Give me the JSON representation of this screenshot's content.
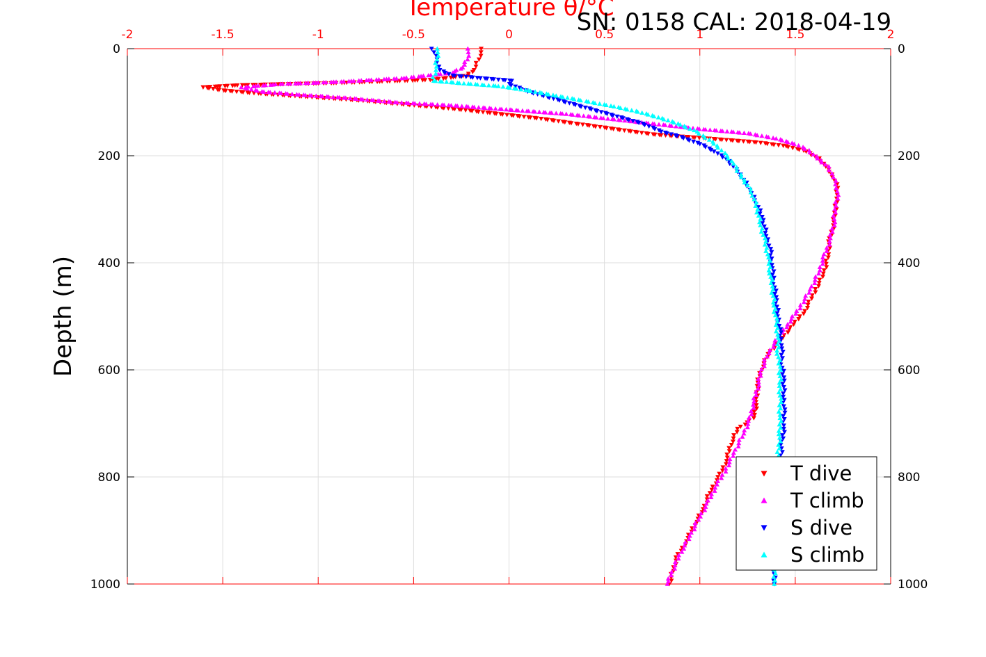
{
  "header": {
    "temperature_title": "Temperature θ/°C",
    "calibration": "SN: 0158  CAL: 2018-04-19"
  },
  "chart_data": {
    "type": "scatter",
    "title": "Temperature θ/°C",
    "ylabel": "Depth (m)",
    "xlabel": "",
    "xlim": [
      -2,
      2
    ],
    "ylim": [
      0,
      1000
    ],
    "y_inverted": true,
    "x_axis_position": "top",
    "x_ticks": [
      "-2",
      "-1.5",
      "-1",
      "-0.5",
      "0",
      "0.5",
      "1",
      "1.5",
      "2"
    ],
    "y_ticks": [
      "0",
      "200",
      "400",
      "600",
      "800",
      "1000"
    ],
    "grid": true,
    "legend_position": "bottom-right",
    "colors": {
      "axis": "#ff0000",
      "grid": "#dddddd",
      "text": "#000000"
    },
    "series": [
      {
        "name": "T dive",
        "color": "#ff0000",
        "marker": "triangle-down",
        "points": [
          [
            -0.14,
            0
          ],
          [
            -0.16,
            20
          ],
          [
            -0.18,
            40
          ],
          [
            -0.22,
            50
          ],
          [
            -0.4,
            58
          ],
          [
            -0.9,
            64
          ],
          [
            -1.4,
            68
          ],
          [
            -1.6,
            72
          ],
          [
            -1.5,
            78
          ],
          [
            -1.3,
            84
          ],
          [
            -1.05,
            90
          ],
          [
            -0.8,
            96
          ],
          [
            -0.55,
            104
          ],
          [
            -0.3,
            112
          ],
          [
            -0.1,
            120
          ],
          [
            0.15,
            130
          ],
          [
            0.35,
            140
          ],
          [
            0.55,
            150
          ],
          [
            0.75,
            160
          ],
          [
            1.05,
            168
          ],
          [
            1.3,
            175
          ],
          [
            1.45,
            182
          ],
          [
            1.56,
            192
          ],
          [
            1.62,
            205
          ],
          [
            1.66,
            220
          ],
          [
            1.7,
            240
          ],
          [
            1.72,
            260
          ],
          [
            1.72,
            280
          ],
          [
            1.71,
            300
          ],
          [
            1.7,
            330
          ],
          [
            1.68,
            360
          ],
          [
            1.67,
            390
          ],
          [
            1.65,
            420
          ],
          [
            1.6,
            455
          ],
          [
            1.55,
            490
          ],
          [
            1.48,
            520
          ],
          [
            1.42,
            545
          ],
          [
            1.36,
            570
          ],
          [
            1.32,
            600
          ],
          [
            1.3,
            630
          ],
          [
            1.3,
            660
          ],
          [
            1.28,
            690
          ],
          [
            1.2,
            710
          ],
          [
            1.16,
            740
          ],
          [
            1.14,
            770
          ],
          [
            1.1,
            800
          ],
          [
            1.05,
            830
          ],
          [
            1.02,
            860
          ],
          [
            0.97,
            890
          ],
          [
            0.93,
            920
          ],
          [
            0.88,
            950
          ],
          [
            0.86,
            975
          ],
          [
            0.84,
            1000
          ]
        ]
      },
      {
        "name": "T climb",
        "color": "#ff00ff",
        "marker": "triangle-up",
        "points": [
          [
            -0.21,
            0
          ],
          [
            -0.22,
            20
          ],
          [
            -0.24,
            35
          ],
          [
            -0.3,
            45
          ],
          [
            -0.55,
            55
          ],
          [
            -0.9,
            62
          ],
          [
            -1.2,
            66
          ],
          [
            -1.4,
            72
          ],
          [
            -1.3,
            80
          ],
          [
            -1.1,
            86
          ],
          [
            -0.85,
            92
          ],
          [
            -0.6,
            100
          ],
          [
            -0.3,
            106
          ],
          [
            0.0,
            114
          ],
          [
            0.3,
            122
          ],
          [
            0.5,
            130
          ],
          [
            0.75,
            140
          ],
          [
            1.0,
            150
          ],
          [
            1.25,
            158
          ],
          [
            1.4,
            168
          ],
          [
            1.5,
            178
          ],
          [
            1.57,
            190
          ],
          [
            1.62,
            205
          ],
          [
            1.67,
            220
          ],
          [
            1.7,
            240
          ],
          [
            1.72,
            260
          ],
          [
            1.72,
            280
          ],
          [
            1.71,
            300
          ],
          [
            1.7,
            330
          ],
          [
            1.68,
            360
          ],
          [
            1.65,
            390
          ],
          [
            1.62,
            420
          ],
          [
            1.58,
            450
          ],
          [
            1.52,
            485
          ],
          [
            1.46,
            515
          ],
          [
            1.4,
            545
          ],
          [
            1.35,
            575
          ],
          [
            1.32,
            605
          ],
          [
            1.3,
            635
          ],
          [
            1.28,
            665
          ],
          [
            1.26,
            695
          ],
          [
            1.22,
            725
          ],
          [
            1.18,
            755
          ],
          [
            1.13,
            790
          ],
          [
            1.08,
            820
          ],
          [
            1.04,
            850
          ],
          [
            0.99,
            880
          ],
          [
            0.95,
            910
          ],
          [
            0.9,
            940
          ],
          [
            0.87,
            965
          ],
          [
            0.84,
            990
          ],
          [
            0.83,
            1000
          ]
        ]
      },
      {
        "name": "S dive",
        "color": "#0000ff",
        "marker": "triangle-down",
        "points": [
          [
            -0.4,
            0
          ],
          [
            -0.38,
            20
          ],
          [
            -0.36,
            40
          ],
          [
            -0.3,
            50
          ],
          [
            -0.15,
            55
          ],
          [
            0.02,
            60
          ],
          [
            0.0,
            66
          ],
          [
            0.1,
            80
          ],
          [
            0.25,
            95
          ],
          [
            0.4,
            110
          ],
          [
            0.55,
            125
          ],
          [
            0.7,
            140
          ],
          [
            0.8,
            155
          ],
          [
            0.9,
            165
          ],
          [
            1.0,
            178
          ],
          [
            1.08,
            192
          ],
          [
            1.15,
            210
          ],
          [
            1.2,
            230
          ],
          [
            1.24,
            250
          ],
          [
            1.27,
            270
          ],
          [
            1.3,
            290
          ],
          [
            1.33,
            320
          ],
          [
            1.35,
            350
          ],
          [
            1.37,
            380
          ],
          [
            1.38,
            410
          ],
          [
            1.39,
            440
          ],
          [
            1.4,
            470
          ],
          [
            1.41,
            500
          ],
          [
            1.42,
            530
          ],
          [
            1.43,
            560
          ],
          [
            1.43,
            590
          ],
          [
            1.44,
            620
          ],
          [
            1.44,
            650
          ],
          [
            1.44,
            680
          ],
          [
            1.44,
            710
          ],
          [
            1.43,
            740
          ],
          [
            1.42,
            780
          ],
          [
            1.41,
            820
          ],
          [
            1.41,
            860
          ],
          [
            1.4,
            900
          ],
          [
            1.4,
            940
          ],
          [
            1.39,
            970
          ],
          [
            1.39,
            1000
          ]
        ]
      },
      {
        "name": "S climb",
        "color": "#00ffff",
        "marker": "triangle-up",
        "points": [
          [
            -0.37,
            0
          ],
          [
            -0.38,
            20
          ],
          [
            -0.38,
            40
          ],
          [
            -0.4,
            60
          ],
          [
            -0.2,
            66
          ],
          [
            -0.05,
            70
          ],
          [
            0.1,
            78
          ],
          [
            0.25,
            88
          ],
          [
            0.4,
            98
          ],
          [
            0.55,
            108
          ],
          [
            0.68,
            118
          ],
          [
            0.8,
            130
          ],
          [
            0.9,
            142
          ],
          [
            0.98,
            155
          ],
          [
            1.05,
            170
          ],
          [
            1.1,
            185
          ],
          [
            1.14,
            200
          ],
          [
            1.18,
            215
          ],
          [
            1.21,
            235
          ],
          [
            1.25,
            255
          ],
          [
            1.28,
            275
          ],
          [
            1.3,
            300
          ],
          [
            1.32,
            330
          ],
          [
            1.34,
            360
          ],
          [
            1.36,
            390
          ],
          [
            1.37,
            420
          ],
          [
            1.38,
            450
          ],
          [
            1.39,
            480
          ],
          [
            1.4,
            510
          ],
          [
            1.41,
            540
          ],
          [
            1.41,
            570
          ],
          [
            1.42,
            600
          ],
          [
            1.42,
            630
          ],
          [
            1.42,
            660
          ],
          [
            1.42,
            690
          ],
          [
            1.42,
            720
          ],
          [
            1.41,
            760
          ],
          [
            1.41,
            800
          ],
          [
            1.4,
            840
          ],
          [
            1.4,
            880
          ],
          [
            1.39,
            920
          ],
          [
            1.39,
            960
          ],
          [
            1.39,
            1000
          ]
        ]
      }
    ]
  }
}
